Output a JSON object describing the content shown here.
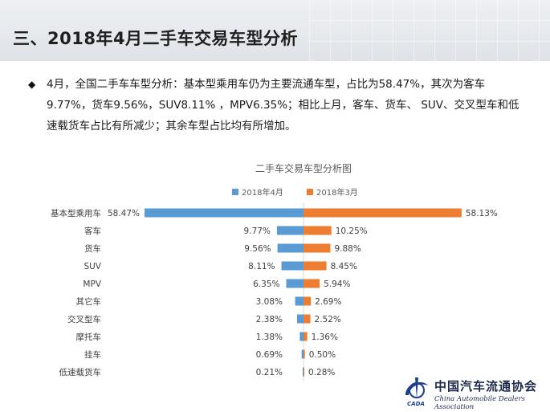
{
  "header": {
    "title": "三、2018年4月二手车交易车型分析"
  },
  "summary": {
    "bullet": "◆",
    "text": "4月，全国二手车车型分析：基本型乘用车仍为主要流通车型，占比为58.47%，其次为客车9.77%，货车9.56%，SUV8.11% ，MPV6.35%；相比上月，客车、货车、 SUV、交叉型车和低速载货车占比有所减少；其余车型占比均有所增加。"
  },
  "chart_data": {
    "type": "bar",
    "orientation": "horizontal-butterfly",
    "title": "二手车交易车型分析图",
    "categories": [
      "基本型乘用车",
      "客车",
      "货车",
      "SUV",
      "MPV",
      "其它车",
      "交叉型车",
      "摩托车",
      "挂车",
      "低速载货车"
    ],
    "series": [
      {
        "name": "2018年4月",
        "color": "#5b9bd5",
        "values": [
          58.47,
          9.77,
          9.56,
          8.11,
          6.35,
          3.08,
          2.38,
          1.38,
          0.69,
          0.21
        ],
        "labels": [
          "58.47%",
          "9.77%",
          "9.56%",
          "8.11%",
          "6.35%",
          "3.08%",
          "2.38%",
          "1.38%",
          "0.69%",
          "0.21%"
        ]
      },
      {
        "name": "2018年3月",
        "color": "#ed7d31",
        "values": [
          58.13,
          10.25,
          9.88,
          8.45,
          5.94,
          2.69,
          2.52,
          1.36,
          0.5,
          0.28
        ],
        "labels": [
          "58.13%",
          "10.25%",
          "9.88%",
          "8.45%",
          "5.94%",
          "2.69%",
          "2.52%",
          "1.36%",
          "0.50%",
          "0.28%"
        ]
      }
    ],
    "legend_position": "top-center",
    "grid": false
  },
  "logo": {
    "name_cn": "中国汽车流通协会",
    "name_en": "China Automobile Dealers Association",
    "mark_text": "CADA"
  }
}
